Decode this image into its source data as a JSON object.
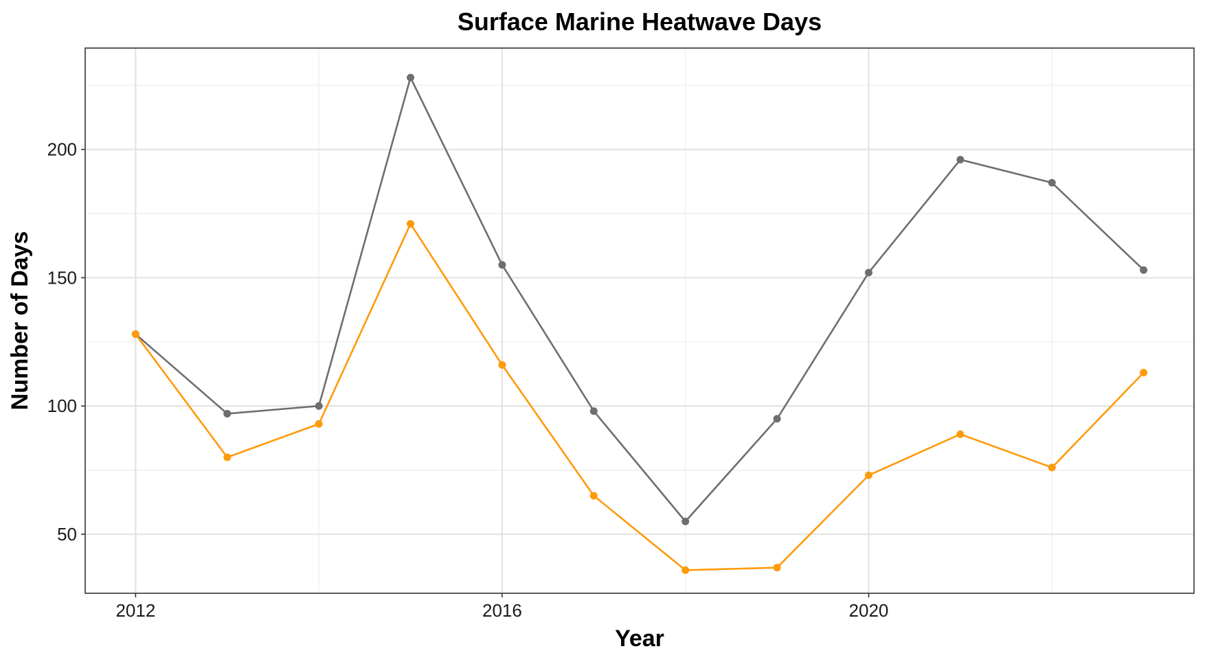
{
  "chart_data": {
    "type": "line",
    "title": "Surface Marine Heatwave Days",
    "xlabel": "Year",
    "ylabel": "Number of Days",
    "x": [
      2012,
      2013,
      2014,
      2015,
      2016,
      2017,
      2018,
      2019,
      2020,
      2021,
      2022,
      2023
    ],
    "series": [
      {
        "color": "#6e6e6e",
        "values": [
          128,
          97,
          100,
          228,
          155,
          98,
          55,
          95,
          152,
          196,
          187,
          153
        ]
      },
      {
        "color": "#ff9a0a",
        "values": [
          128,
          80,
          93,
          171,
          116,
          65,
          36,
          37,
          73,
          89,
          76,
          113
        ]
      }
    ],
    "xlim": [
      2011.45,
      2023.55
    ],
    "ylim": [
      27,
      239.5
    ],
    "x_ticks": [
      "2012",
      "2016",
      "2020"
    ],
    "x_tick_values": [
      2012,
      2016,
      2020
    ],
    "y_ticks": [
      "50",
      "100",
      "150",
      "200"
    ],
    "y_tick_values": [
      50,
      100,
      150,
      200
    ],
    "x_minor_values": [
      2014,
      2018,
      2022
    ],
    "y_minor_values": [
      75,
      125,
      175,
      225
    ],
    "grid": true,
    "legend": "none"
  }
}
